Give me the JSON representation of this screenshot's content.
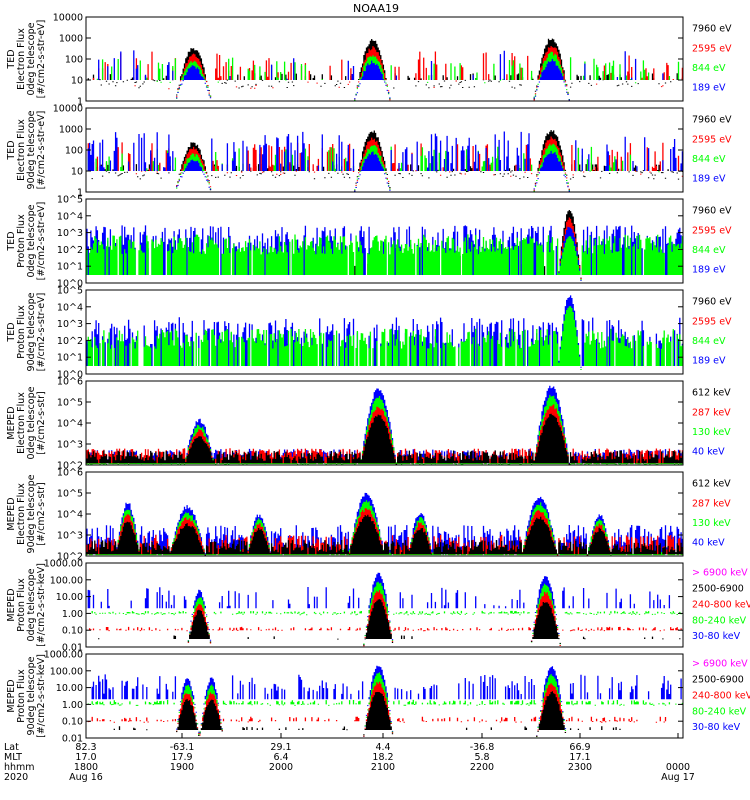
{
  "title": "NOAA19",
  "colors": {
    "black": "#000000",
    "red": "#ff0000",
    "green": "#00ff00",
    "blue": "#0000ff",
    "magenta": "#ff00ff"
  },
  "chart_data": [
    {
      "type": "scatter",
      "id": "ted-e-0",
      "ylabel": [
        "TED",
        "Electron Flux",
        "0deg telescope",
        "[#/cm2-s-str-eV]"
      ],
      "scale": "log",
      "ylim": [
        1,
        10000
      ],
      "ticks": [
        {
          "v": 10000,
          "t": "10000"
        },
        {
          "v": 1000,
          "t": "1000"
        },
        {
          "v": 100,
          "t": "100"
        },
        {
          "v": 10,
          "t": "10"
        },
        {
          "v": 1,
          "t": "1"
        }
      ],
      "legend": [
        {
          "text": "7960 eV",
          "color": "#000000"
        },
        {
          "text": "2595 eV",
          "color": "#ff0000"
        },
        {
          "text": "844 eV",
          "color": "#00ff00"
        },
        {
          "text": "189 eV",
          "color": "#0000ff"
        }
      ],
      "series": [
        {
          "name": "7960 eV",
          "color": "#000000",
          "base": 0.8,
          "noise": 0.35,
          "density": 0.45,
          "floor": 10
        },
        {
          "name": "2595 eV",
          "color": "#ff0000",
          "base": 1.1,
          "noise": 0.9,
          "density": 0.22,
          "floor": 10
        },
        {
          "name": "844 eV",
          "color": "#00ff00",
          "base": 1.2,
          "noise": 0.6,
          "density": 0.18,
          "floor": 10
        },
        {
          "name": "189 eV",
          "color": "#0000ff",
          "base": 1.4,
          "noise": 0.7,
          "density": 0.08,
          "floor": 10
        }
      ],
      "peaks": [
        {
          "x": 0.18,
          "w": 0.03,
          "top": 300
        },
        {
          "x": 0.48,
          "w": 0.03,
          "top": 700
        },
        {
          "x": 0.78,
          "w": 0.03,
          "top": 900
        }
      ]
    },
    {
      "type": "scatter",
      "id": "ted-e-90",
      "ylabel": [
        "TED",
        "Electron Flux",
        "90deg telescope",
        "[#/cm2-s-str-eV]"
      ],
      "scale": "log",
      "ylim": [
        1,
        10000
      ],
      "ticks": [
        {
          "v": 10000,
          "t": "10000"
        },
        {
          "v": 1000,
          "t": "1000"
        },
        {
          "v": 100,
          "t": "100"
        },
        {
          "v": 10,
          "t": "10"
        },
        {
          "v": 1,
          "t": "1"
        }
      ],
      "legend": [
        {
          "text": "7960 eV",
          "color": "#000000"
        },
        {
          "text": "2595 eV",
          "color": "#ff0000"
        },
        {
          "text": "844 eV",
          "color": "#00ff00"
        },
        {
          "text": "189 eV",
          "color": "#0000ff"
        }
      ],
      "series": [
        {
          "name": "7960 eV",
          "color": "#000000",
          "base": 0.8,
          "noise": 0.35,
          "density": 0.6,
          "floor": 10
        },
        {
          "name": "2595 eV",
          "color": "#ff0000",
          "base": 1.2,
          "noise": 0.8,
          "density": 0.35,
          "floor": 10
        },
        {
          "name": "844 eV",
          "color": "#00ff00",
          "base": 1.3,
          "noise": 0.6,
          "density": 0.2,
          "floor": 10
        },
        {
          "name": "189 eV",
          "color": "#0000ff",
          "base": 1.6,
          "noise": 0.9,
          "density": 0.3,
          "floor": 10
        }
      ],
      "peaks": [
        {
          "x": 0.18,
          "w": 0.03,
          "top": 200
        },
        {
          "x": 0.48,
          "w": 0.03,
          "top": 700
        },
        {
          "x": 0.78,
          "w": 0.03,
          "top": 800
        }
      ]
    },
    {
      "type": "scatter",
      "id": "ted-p-0",
      "ylabel": [
        "TED",
        "Proton Flux",
        "0deg telescope",
        "[#/cm2-s-str-eV]"
      ],
      "scale": "log",
      "ylim": [
        1,
        100000
      ],
      "ticks": [
        {
          "v": 100000,
          "t": "10^5"
        },
        {
          "v": 10000,
          "t": "10^4"
        },
        {
          "v": 1000,
          "t": "10^3"
        },
        {
          "v": 100,
          "t": "10^2"
        },
        {
          "v": 10,
          "t": "10^1"
        },
        {
          "v": 1,
          "t": "10^0"
        }
      ],
      "legend": [
        {
          "text": "7960 eV",
          "color": "#000000"
        },
        {
          "text": "2595 eV",
          "color": "#ff0000"
        },
        {
          "text": "844 eV",
          "color": "#00ff00"
        },
        {
          "text": "189 eV",
          "color": "#0000ff"
        }
      ],
      "series": [
        {
          "name": "7960 eV",
          "color": "#000000",
          "base": 1.0,
          "noise": 0.4,
          "density": 0.04,
          "floor": 3
        },
        {
          "name": "2595 eV",
          "color": "#ff0000",
          "base": 1.1,
          "noise": 0.4,
          "density": 0.05,
          "floor": 3
        },
        {
          "name": "189 eV",
          "color": "#0000ff",
          "base": 2.4,
          "noise": 0.7,
          "density": 0.6,
          "floor": 3
        },
        {
          "name": "844 eV",
          "color": "#00ff00",
          "base": 2.0,
          "noise": 0.6,
          "density": 0.85,
          "floor": 3
        }
      ],
      "peaks": [
        {
          "x": 0.81,
          "w": 0.02,
          "top": 20000
        }
      ]
    },
    {
      "type": "scatter",
      "id": "ted-p-90",
      "ylabel": [
        "TED",
        "Proton Flux",
        "90deg telescope",
        "[#/cm2-s-str-eV]"
      ],
      "scale": "log",
      "ylim": [
        1,
        100000
      ],
      "ticks": [
        {
          "v": 100000,
          "t": "10^5"
        },
        {
          "v": 10000,
          "t": "10^4"
        },
        {
          "v": 1000,
          "t": "10^3"
        },
        {
          "v": 100,
          "t": "10^2"
        },
        {
          "v": 10,
          "t": "10^1"
        },
        {
          "v": 1,
          "t": "10^0"
        }
      ],
      "legend": [
        {
          "text": "7960 eV",
          "color": "#000000"
        },
        {
          "text": "2595 eV",
          "color": "#ff0000"
        },
        {
          "text": "844 eV",
          "color": "#00ff00"
        },
        {
          "text": "189 eV",
          "color": "#0000ff"
        }
      ],
      "series": [
        {
          "name": "189 eV",
          "color": "#0000ff",
          "base": 2.2,
          "noise": 0.8,
          "density": 0.55,
          "floor": 3
        },
        {
          "name": "844 eV",
          "color": "#00ff00",
          "base": 1.8,
          "noise": 0.6,
          "density": 0.75,
          "floor": 3
        }
      ],
      "peaks": [
        {
          "x": 0.81,
          "w": 0.02,
          "top": 40000
        }
      ]
    },
    {
      "type": "scatter",
      "id": "meped-e-0",
      "ylabel": [
        "MEPED",
        "Electron Flux",
        "0deg telescope",
        "[#/cm2-s-str]"
      ],
      "scale": "log",
      "ylim": [
        100,
        1000000
      ],
      "ticks": [
        {
          "v": 1000000,
          "t": "10^6"
        },
        {
          "v": 100000,
          "t": "10^5"
        },
        {
          "v": 10000,
          "t": "10^4"
        },
        {
          "v": 1000,
          "t": "10^3"
        },
        {
          "v": 100,
          "t": "10^2"
        }
      ],
      "legend": [
        {
          "text": "612 keV",
          "color": "#000000"
        },
        {
          "text": "287 keV",
          "color": "#ff0000"
        },
        {
          "text": "130 keV",
          "color": "#00ff00"
        },
        {
          "text": "40 keV",
          "color": "#0000ff"
        }
      ],
      "series": [
        {
          "name": "40 keV",
          "color": "#0000ff",
          "base": 2.3,
          "noise": 0.3,
          "density": 0.9,
          "floor": 120
        },
        {
          "name": "130 keV",
          "color": "#00ff00",
          "base": 2.05,
          "noise": 0.08,
          "density": 0.95,
          "floor": 110
        },
        {
          "name": "287 keV",
          "color": "#ff0000",
          "base": 2.4,
          "noise": 0.25,
          "density": 0.9,
          "floor": 120
        },
        {
          "name": "612 keV",
          "color": "#000000",
          "base": 2.3,
          "noise": 0.25,
          "density": 0.9,
          "floor": 120
        }
      ],
      "peaks": [
        {
          "x": 0.19,
          "w": 0.025,
          "top": 12000
        },
        {
          "x": 0.49,
          "w": 0.03,
          "top": 400000
        },
        {
          "x": 0.78,
          "w": 0.03,
          "top": 500000
        }
      ]
    },
    {
      "type": "scatter",
      "id": "meped-e-90",
      "ylabel": [
        "MEPED",
        "Electron Flux",
        "90deg telescope",
        "[#/cm2-s-str]"
      ],
      "scale": "log",
      "ylim": [
        100,
        1000000
      ],
      "ticks": [
        {
          "v": 1000000,
          "t": "10^6"
        },
        {
          "v": 100000,
          "t": "10^5"
        },
        {
          "v": 10000,
          "t": "10^4"
        },
        {
          "v": 1000,
          "t": "10^3"
        },
        {
          "v": 100,
          "t": "10^2"
        }
      ],
      "legend": [
        {
          "text": "612 keV",
          "color": "#000000"
        },
        {
          "text": "287 keV",
          "color": "#ff0000"
        },
        {
          "text": "130 keV",
          "color": "#00ff00"
        },
        {
          "text": "40 keV",
          "color": "#0000ff"
        }
      ],
      "series": [
        {
          "name": "40 keV",
          "color": "#0000ff",
          "base": 2.6,
          "noise": 0.6,
          "density": 0.9,
          "floor": 120
        },
        {
          "name": "130 keV",
          "color": "#00ff00",
          "base": 2.1,
          "noise": 0.1,
          "density": 0.9,
          "floor": 110
        },
        {
          "name": "287 keV",
          "color": "#ff0000",
          "base": 2.4,
          "noise": 0.4,
          "density": 0.85,
          "floor": 120
        },
        {
          "name": "612 keV",
          "color": "#000000",
          "base": 2.3,
          "noise": 0.3,
          "density": 0.9,
          "floor": 120
        }
      ],
      "peaks": [
        {
          "x": 0.07,
          "w": 0.02,
          "top": 30000
        },
        {
          "x": 0.17,
          "w": 0.03,
          "top": 20000
        },
        {
          "x": 0.29,
          "w": 0.02,
          "top": 8000
        },
        {
          "x": 0.47,
          "w": 0.03,
          "top": 80000
        },
        {
          "x": 0.56,
          "w": 0.02,
          "top": 10000
        },
        {
          "x": 0.76,
          "w": 0.03,
          "top": 60000
        },
        {
          "x": 0.86,
          "w": 0.02,
          "top": 8000
        }
      ]
    },
    {
      "type": "scatter",
      "id": "meped-p-0",
      "ylabel": [
        "MEPED",
        "Proton Flux",
        "0deg telescope",
        "[#/cm2-s-str-keV]"
      ],
      "scale": "log",
      "ylim": [
        0.01,
        1000
      ],
      "ticks": [
        {
          "v": 1000,
          "t": "1000.00"
        },
        {
          "v": 100,
          "t": "100.00"
        },
        {
          "v": 10,
          "t": "10.00"
        },
        {
          "v": 1,
          "t": "1.00"
        },
        {
          "v": 0.1,
          "t": "0.10"
        },
        {
          "v": 0.01,
          "t": "0.01"
        }
      ],
      "legend": [
        {
          "text": "> 6900 keV",
          "color": "#ff00ff"
        },
        {
          "text": "2500-6900",
          "color": "#000000"
        },
        {
          "text": "240-800 keV",
          "color": "#ff0000"
        },
        {
          "text": "80-240 keV",
          "color": "#00ff00"
        },
        {
          "text": "30-80 keV",
          "color": "#0000ff"
        }
      ],
      "series": [
        {
          "name": "30-80 keV",
          "color": "#0000ff",
          "base": 0.7,
          "noise": 0.6,
          "density": 0.2,
          "floor": 2
        },
        {
          "name": "80-240 keV",
          "color": "#00ff00",
          "base": -0.05,
          "noise": 0.1,
          "density": 0.5,
          "floor": 1
        },
        {
          "name": "240-800 keV",
          "color": "#ff0000",
          "base": -1.0,
          "noise": 0.1,
          "density": 0.3,
          "floor": 0.1
        },
        {
          "name": "2500-6900",
          "color": "#000000",
          "base": -1.5,
          "noise": 0.1,
          "density": 0.05,
          "floor": 0.03
        }
      ],
      "peaks": [
        {
          "x": 0.19,
          "w": 0.02,
          "top": 20
        },
        {
          "x": 0.49,
          "w": 0.025,
          "top": 200
        },
        {
          "x": 0.77,
          "w": 0.025,
          "top": 150
        }
      ]
    },
    {
      "type": "scatter",
      "id": "meped-p-90",
      "ylabel": [
        "MEPED",
        "Proton Flux",
        "90deg telescope",
        "[#/cm2-s-str-keV]"
      ],
      "scale": "log",
      "ylim": [
        0.01,
        1000
      ],
      "ticks": [
        {
          "v": 1000,
          "t": "1000.00"
        },
        {
          "v": 100,
          "t": "100.00"
        },
        {
          "v": 10,
          "t": "10.00"
        },
        {
          "v": 1,
          "t": "1.00"
        },
        {
          "v": 0.1,
          "t": "0.10"
        },
        {
          "v": 0.01,
          "t": "0.01"
        }
      ],
      "legend": [
        {
          "text": "> 6900 keV",
          "color": "#ff00ff"
        },
        {
          "text": "2500-6900",
          "color": "#000000"
        },
        {
          "text": "240-800 keV",
          "color": "#ff0000"
        },
        {
          "text": "80-240 keV",
          "color": "#00ff00"
        },
        {
          "text": "30-80 keV",
          "color": "#0000ff"
        }
      ],
      "series": [
        {
          "name": "30-80 keV",
          "color": "#0000ff",
          "base": 0.9,
          "noise": 0.6,
          "density": 0.3,
          "floor": 2
        },
        {
          "name": "80-240 keV",
          "color": "#00ff00",
          "base": 0.0,
          "noise": 0.15,
          "density": 0.5,
          "floor": 1
        },
        {
          "name": "240-800 keV",
          "color": "#ff0000",
          "base": -1.0,
          "noise": 0.15,
          "density": 0.3,
          "floor": 0.1
        },
        {
          "name": "2500-6900",
          "color": "#000000",
          "base": -1.5,
          "noise": 0.1,
          "density": 0.05,
          "floor": 0.03
        }
      ],
      "peaks": [
        {
          "x": 0.17,
          "w": 0.02,
          "top": 30
        },
        {
          "x": 0.21,
          "w": 0.02,
          "top": 30
        },
        {
          "x": 0.49,
          "w": 0.025,
          "top": 200
        },
        {
          "x": 0.78,
          "w": 0.025,
          "top": 150
        }
      ]
    }
  ],
  "xaxis": {
    "row_labels": [
      "Lat",
      "MLT",
      "hhmm",
      "2020"
    ],
    "columns": [
      {
        "lat": "82.3",
        "mlt": "17.0",
        "hhmm": "1800",
        "date": "Aug 16"
      },
      {
        "lat": "-63.1",
        "mlt": "17.9",
        "hhmm": "1900",
        "date": ""
      },
      {
        "lat": "29.1",
        "mlt": "6.4",
        "hhmm": "2000",
        "date": ""
      },
      {
        "lat": "4.4",
        "mlt": "18.2",
        "hhmm": "2100",
        "date": ""
      },
      {
        "lat": "-36.8",
        "mlt": "5.8",
        "hhmm": "2200",
        "date": ""
      },
      {
        "lat": "66.9",
        "mlt": "17.1",
        "hhmm": "2300",
        "date": ""
      },
      {
        "lat": "",
        "mlt": "",
        "hhmm": "0000",
        "date": "Aug 17"
      }
    ]
  }
}
